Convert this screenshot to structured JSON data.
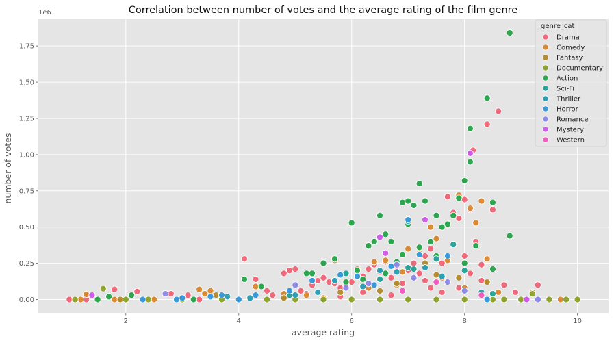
{
  "chart_data": {
    "type": "scatter",
    "title": "Correlation between number of votes and the average rating of the film genre",
    "xlabel": "average rating",
    "ylabel": "number of votes",
    "y_offset_label": "1e6",
    "xlim": [
      0.45,
      10.55
    ],
    "ylim": [
      -92000,
      1935000
    ],
    "x_ticks": [
      2,
      4,
      6,
      8,
      10
    ],
    "x_tick_labels": [
      "2",
      "4",
      "6",
      "8",
      "10"
    ],
    "y_ticks": [
      0,
      250000,
      500000,
      750000,
      1000000,
      1250000,
      1500000,
      1750000
    ],
    "y_tick_labels": [
      "0.00",
      "0.25",
      "0.50",
      "0.75",
      "1.00",
      "1.25",
      "1.50",
      "1.75"
    ],
    "grid": true,
    "legend_position": "top-right",
    "legend_title": "genre_cat",
    "series": [
      {
        "name": "Drama",
        "color": "#f0697a",
        "points": [
          [
            1.0,
            0
          ],
          [
            1.3,
            0
          ],
          [
            1.8,
            70000
          ],
          [
            2.2,
            55000
          ],
          [
            2.8,
            40000
          ],
          [
            3.1,
            30000
          ],
          [
            3.3,
            0
          ],
          [
            3.5,
            45000
          ],
          [
            4.1,
            280000
          ],
          [
            4.3,
            140000
          ],
          [
            4.5,
            60000
          ],
          [
            4.6,
            30000
          ],
          [
            4.8,
            180000
          ],
          [
            4.9,
            200000
          ],
          [
            5.0,
            210000
          ],
          [
            5.1,
            60000
          ],
          [
            5.2,
            40000
          ],
          [
            5.3,
            100000
          ],
          [
            5.4,
            130000
          ],
          [
            5.5,
            150000
          ],
          [
            5.6,
            120000
          ],
          [
            5.7,
            110000
          ],
          [
            5.8,
            80000
          ],
          [
            5.9,
            90000
          ],
          [
            6.0,
            120000
          ],
          [
            6.1,
            200000
          ],
          [
            6.2,
            160000
          ],
          [
            6.3,
            210000
          ],
          [
            6.4,
            240000
          ],
          [
            6.5,
            190000
          ],
          [
            6.6,
            260000
          ],
          [
            6.7,
            150000
          ],
          [
            6.8,
            230000
          ],
          [
            6.9,
            110000
          ],
          [
            7.0,
            200000
          ],
          [
            7.1,
            250000
          ],
          [
            7.2,
            180000
          ],
          [
            7.3,
            300000
          ],
          [
            7.4,
            350000
          ],
          [
            7.5,
            420000
          ],
          [
            7.6,
            250000
          ],
          [
            7.7,
            710000
          ],
          [
            7.8,
            600000
          ],
          [
            7.9,
            560000
          ],
          [
            8.0,
            690000
          ],
          [
            8.1,
            620000
          ],
          [
            8.15,
            1030000
          ],
          [
            8.2,
            400000
          ],
          [
            8.3,
            240000
          ],
          [
            8.4,
            1210000
          ],
          [
            8.5,
            620000
          ],
          [
            8.6,
            1300000
          ],
          [
            8.7,
            100000
          ],
          [
            8.9,
            50000
          ],
          [
            9.3,
            100000
          ],
          [
            9.5,
            0
          ],
          [
            10.0,
            0
          ],
          [
            7.3,
            130000
          ],
          [
            7.6,
            50000
          ],
          [
            6.7,
            30000
          ],
          [
            7.9,
            80000
          ],
          [
            8.3,
            130000
          ],
          [
            6.2,
            50000
          ],
          [
            5.8,
            20000
          ],
          [
            4.8,
            20000
          ],
          [
            8.0,
            300000
          ],
          [
            7.4,
            80000
          ],
          [
            8.1,
            180000
          ]
        ]
      },
      {
        "name": "Comedy",
        "color": "#d98a34",
        "points": [
          [
            1.2,
            0
          ],
          [
            1.3,
            35000
          ],
          [
            1.8,
            0
          ],
          [
            2.5,
            0
          ],
          [
            3.3,
            70000
          ],
          [
            3.4,
            40000
          ],
          [
            3.5,
            60000
          ],
          [
            4.3,
            90000
          ],
          [
            4.8,
            40000
          ],
          [
            5.2,
            30000
          ],
          [
            5.7,
            270000
          ],
          [
            6.1,
            210000
          ],
          [
            6.4,
            260000
          ],
          [
            6.6,
            270000
          ],
          [
            6.9,
            190000
          ],
          [
            7.0,
            350000
          ],
          [
            7.2,
            320000
          ],
          [
            7.4,
            500000
          ],
          [
            7.5,
            420000
          ],
          [
            7.7,
            270000
          ],
          [
            7.8,
            380000
          ],
          [
            7.9,
            720000
          ],
          [
            8.1,
            630000
          ],
          [
            8.2,
            530000
          ],
          [
            8.3,
            680000
          ],
          [
            8.4,
            280000
          ],
          [
            8.6,
            50000
          ],
          [
            9.0,
            0
          ],
          [
            9.7,
            0
          ],
          [
            6.3,
            80000
          ],
          [
            6.8,
            100000
          ],
          [
            7.6,
            150000
          ],
          [
            5.5,
            10000
          ],
          [
            8.0,
            80000
          ]
        ]
      },
      {
        "name": "Fantasy",
        "color": "#b38c2e",
        "points": [
          [
            1.9,
            0
          ],
          [
            3.6,
            30000
          ],
          [
            4.8,
            10000
          ],
          [
            5.8,
            50000
          ],
          [
            6.2,
            100000
          ],
          [
            6.8,
            110000
          ],
          [
            7.3,
            250000
          ],
          [
            7.5,
            170000
          ],
          [
            7.9,
            150000
          ],
          [
            8.4,
            120000
          ],
          [
            9.2,
            50000
          ],
          [
            6.5,
            60000
          ]
        ]
      },
      {
        "name": "Documentary",
        "color": "#8fa331",
        "points": [
          [
            1.1,
            0
          ],
          [
            1.6,
            75000
          ],
          [
            2.0,
            0
          ],
          [
            2.4,
            0
          ],
          [
            3.0,
            0
          ],
          [
            3.7,
            0
          ],
          [
            4.0,
            0
          ],
          [
            4.5,
            0
          ],
          [
            5.0,
            0
          ],
          [
            5.5,
            0
          ],
          [
            6.0,
            0
          ],
          [
            6.5,
            0
          ],
          [
            7.0,
            0
          ],
          [
            7.5,
            0
          ],
          [
            8.0,
            0
          ],
          [
            8.5,
            0
          ],
          [
            8.7,
            0
          ],
          [
            9.0,
            0
          ],
          [
            9.2,
            40000
          ],
          [
            9.5,
            0
          ],
          [
            9.8,
            0
          ],
          [
            10.0,
            0
          ]
        ]
      },
      {
        "name": "Action",
        "color": "#2ea64f",
        "points": [
          [
            1.5,
            0
          ],
          [
            1.7,
            20000
          ],
          [
            2.1,
            30000
          ],
          [
            3.2,
            0
          ],
          [
            4.1,
            140000
          ],
          [
            4.4,
            90000
          ],
          [
            5.2,
            180000
          ],
          [
            5.3,
            180000
          ],
          [
            5.5,
            250000
          ],
          [
            5.7,
            280000
          ],
          [
            6.0,
            530000
          ],
          [
            6.1,
            200000
          ],
          [
            6.3,
            370000
          ],
          [
            6.4,
            400000
          ],
          [
            6.5,
            580000
          ],
          [
            6.6,
            450000
          ],
          [
            6.7,
            400000
          ],
          [
            6.8,
            260000
          ],
          [
            6.9,
            670000
          ],
          [
            7.0,
            680000
          ],
          [
            7.1,
            650000
          ],
          [
            7.2,
            800000
          ],
          [
            7.3,
            680000
          ],
          [
            7.4,
            400000
          ],
          [
            7.5,
            580000
          ],
          [
            7.6,
            500000
          ],
          [
            7.7,
            520000
          ],
          [
            7.8,
            580000
          ],
          [
            7.9,
            700000
          ],
          [
            8.0,
            820000
          ],
          [
            8.1,
            950000
          ],
          [
            8.1,
            1180000
          ],
          [
            8.2,
            370000
          ],
          [
            8.4,
            1390000
          ],
          [
            8.5,
            670000
          ],
          [
            8.8,
            1840000
          ],
          [
            8.8,
            440000
          ],
          [
            8.5,
            210000
          ],
          [
            6.2,
            140000
          ],
          [
            6.9,
            310000
          ],
          [
            7.2,
            360000
          ],
          [
            5.9,
            120000
          ],
          [
            6.6,
            180000
          ],
          [
            7.0,
            520000
          ],
          [
            7.5,
            300000
          ],
          [
            8.0,
            250000
          ]
        ]
      },
      {
        "name": "Sci-Fi",
        "color": "#2aa39a",
        "points": [
          [
            4.9,
            30000
          ],
          [
            5.9,
            180000
          ],
          [
            6.5,
            140000
          ],
          [
            7.0,
            220000
          ],
          [
            7.1,
            210000
          ],
          [
            7.5,
            280000
          ],
          [
            7.8,
            380000
          ],
          [
            8.0,
            200000
          ],
          [
            8.5,
            40000
          ],
          [
            6.2,
            90000
          ]
        ]
      },
      {
        "name": "Thriller",
        "color": "#2f9fb4",
        "points": [
          [
            3.8,
            20000
          ],
          [
            4.2,
            10000
          ],
          [
            5.4,
            50000
          ],
          [
            5.7,
            130000
          ],
          [
            6.2,
            90000
          ],
          [
            6.5,
            200000
          ],
          [
            6.8,
            190000
          ],
          [
            7.0,
            540000
          ],
          [
            7.3,
            220000
          ],
          [
            7.6,
            160000
          ],
          [
            8.3,
            50000
          ],
          [
            5.0,
            30000
          ]
        ]
      },
      {
        "name": "Horror",
        "color": "#3a9ad9",
        "points": [
          [
            2.3,
            0
          ],
          [
            2.9,
            0
          ],
          [
            3.0,
            10000
          ],
          [
            3.5,
            20000
          ],
          [
            3.7,
            30000
          ],
          [
            4.3,
            30000
          ],
          [
            4.9,
            60000
          ],
          [
            5.3,
            130000
          ],
          [
            5.8,
            170000
          ],
          [
            6.1,
            160000
          ],
          [
            6.4,
            100000
          ],
          [
            6.7,
            230000
          ],
          [
            7.0,
            550000
          ],
          [
            7.2,
            310000
          ],
          [
            7.7,
            300000
          ],
          [
            8.4,
            0
          ],
          [
            4.0,
            0
          ]
        ]
      },
      {
        "name": "Romance",
        "color": "#8f8ae6",
        "points": [
          [
            2.7,
            40000
          ],
          [
            5.0,
            100000
          ],
          [
            5.9,
            80000
          ],
          [
            6.3,
            110000
          ],
          [
            6.8,
            240000
          ],
          [
            7.1,
            150000
          ],
          [
            7.7,
            120000
          ],
          [
            8.0,
            60000
          ],
          [
            9.3,
            0
          ]
        ]
      },
      {
        "name": "Mystery",
        "color": "#cf5be8",
        "points": [
          [
            1.4,
            30000
          ],
          [
            6.5,
            430000
          ],
          [
            7.3,
            550000
          ],
          [
            8.1,
            1010000
          ],
          [
            9.1,
            0
          ],
          [
            6.6,
            320000
          ]
        ]
      },
      {
        "name": "Western",
        "color": "#f05cbf",
        "points": [
          [
            6.9,
            60000
          ],
          [
            7.5,
            120000
          ],
          [
            8.3,
            30000
          ]
        ]
      }
    ]
  }
}
